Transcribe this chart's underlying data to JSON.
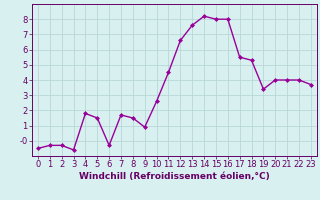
{
  "x": [
    0,
    1,
    2,
    3,
    4,
    5,
    6,
    7,
    8,
    9,
    10,
    11,
    12,
    13,
    14,
    15,
    16,
    17,
    18,
    19,
    20,
    21,
    22,
    23
  ],
  "y": [
    -0.5,
    -0.3,
    -0.3,
    -0.6,
    1.8,
    1.5,
    -0.3,
    1.7,
    1.5,
    0.9,
    2.6,
    4.5,
    6.6,
    7.6,
    8.2,
    8.0,
    8.0,
    5.5,
    5.3,
    3.4,
    4.0,
    4.0,
    4.0,
    3.7
  ],
  "line_color": "#990099",
  "marker": "D",
  "marker_size": 2.0,
  "bg_color": "#d8f0f0",
  "grid_color": "#b8d8d8",
  "xlabel": "Windchill (Refroidissement éolien,°C)",
  "xlabel_color": "#660066",
  "tick_color": "#660066",
  "ylim": [
    -1,
    9
  ],
  "xlim": [
    -0.5,
    23.5
  ],
  "yticks": [
    0,
    1,
    2,
    3,
    4,
    5,
    6,
    7,
    8
  ],
  "ytick_labels": [
    "-0",
    "1",
    "2",
    "3",
    "4",
    "5",
    "6",
    "7",
    "8"
  ],
  "xticks": [
    0,
    1,
    2,
    3,
    4,
    5,
    6,
    7,
    8,
    9,
    10,
    11,
    12,
    13,
    14,
    15,
    16,
    17,
    18,
    19,
    20,
    21,
    22,
    23
  ],
  "label_fontsize": 6.5,
  "tick_fontsize": 6.0,
  "linewidth": 1.0
}
